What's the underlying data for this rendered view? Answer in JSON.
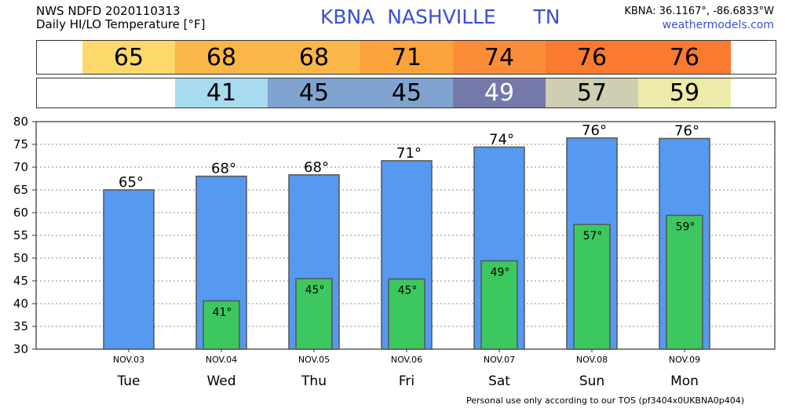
{
  "header": {
    "product": "NWS NDFD 2020110313",
    "title": "Daily HI/LO Temperature [°F]",
    "station": "KBNA  NASHVILLE      TN",
    "coords": "KBNA: 36.1167°, -86.6833°W",
    "site": "weathermodels.com"
  },
  "hi_strip": {
    "values": [
      "65",
      "68",
      "68",
      "71",
      "74",
      "76",
      "76"
    ],
    "colors": [
      "#fcd96a",
      "#f9b748",
      "#f9b748",
      "#fba33b",
      "#fb8d38",
      "#fa7a30",
      "#fa7a30"
    ]
  },
  "lo_strip": {
    "values": [
      "",
      "41",
      "45",
      "45",
      "49",
      "57",
      "59"
    ],
    "colors": [
      "#ffffff",
      "#a8dbee",
      "#80a3cf",
      "#80a3cf",
      "#7579aa",
      "#cfcdb2",
      "#ecebaa"
    ],
    "text_colors": [
      "#000000",
      "#000000",
      "#000000",
      "#000000",
      "#ffffff",
      "#000000",
      "#000000"
    ]
  },
  "chart_data": {
    "type": "bar",
    "days": [
      "Tue",
      "Wed",
      "Thu",
      "Fri",
      "Sat",
      "Sun",
      "Mon"
    ],
    "dates": [
      "NOV.03",
      "NOV.04",
      "NOV.05",
      "NOV.06",
      "NOV.07",
      "NOV.08",
      "NOV.09"
    ],
    "series": [
      {
        "values": [
          65,
          68,
          68.3,
          71.4,
          74.4,
          76.4,
          76.3
        ],
        "labels": [
          "65°",
          "68°",
          "68°",
          "71°",
          "74°",
          "76°",
          "76°"
        ],
        "color": "#5599f0"
      },
      {
        "values": [
          null,
          40.6,
          45.5,
          45.4,
          49.4,
          57.4,
          59.4
        ],
        "labels": [
          "",
          "41°",
          "45°",
          "45°",
          "49°",
          "57°",
          "59°"
        ],
        "color": "#3cc85e"
      }
    ],
    "ylim": [
      30,
      80
    ],
    "yticks": [
      30,
      35,
      40,
      45,
      50,
      55,
      60,
      65,
      70,
      75,
      80
    ],
    "grid": true
  },
  "footer": "Personal use only according to our TOS (pf3404x0UKBNA0p404)"
}
